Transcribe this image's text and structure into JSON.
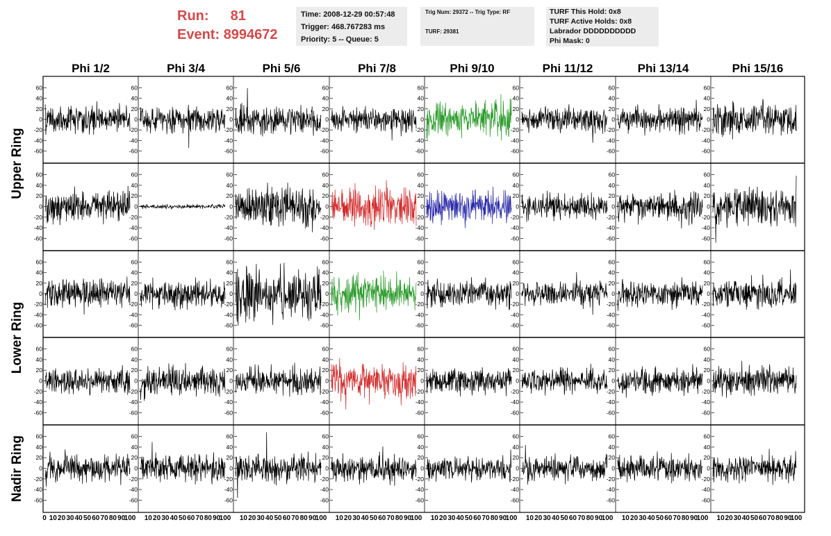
{
  "header": {
    "run_label": "Run:",
    "run_value": "81",
    "event_label": "Event:",
    "event_value": "8994672"
  },
  "info_box_1": {
    "time": "Time: 2008-12-29 00:57:48",
    "trigger": "Trigger: 468.767283 ms",
    "priority": "Priority: 5 -- Queue: 5"
  },
  "info_box_2": {
    "trig": "Trig Num: 29372 -- Trig Type: RF",
    "turf": "TURF: 29381"
  },
  "info_box_3": {
    "hold": "TURF This Hold: 0x8",
    "active": "TURF Active Holds: 0x8",
    "labrador": "Labrador DDDDDDDDDD",
    "phimask": "Phi Mask: 0"
  },
  "chart_data": {
    "type": "line",
    "columns": [
      "Phi 1/2",
      "Phi 3/4",
      "Phi 5/6",
      "Phi 7/8",
      "Phi 9/10",
      "Phi 11/12",
      "Phi 13/14",
      "Phi 15/16"
    ],
    "rings": [
      {
        "label": "Upper Ring",
        "rows": 2
      },
      {
        "label": "Lower Ring",
        "rows": 2
      },
      {
        "label": "Nadir Ring",
        "rows": 1
      }
    ],
    "ylim": [
      -70,
      70
    ],
    "yticks": [
      -60,
      -40,
      -20,
      0,
      20,
      40,
      60
    ],
    "xlim": [
      0,
      100
    ],
    "xtick_labels": [
      "0",
      "10",
      "20",
      "30",
      "40",
      "50",
      "60",
      "70",
      "80",
      "90",
      "100"
    ],
    "grid": false,
    "trace_colors": {
      "default": "#000000",
      "green": "#2a9a2a",
      "red": "#d22a2a",
      "blue": "#2a2aa8"
    },
    "traces": [
      [
        {
          "amp": 13,
          "color": "default"
        },
        {
          "amp": 12,
          "color": "default"
        },
        {
          "amp": 14,
          "color": "default"
        },
        {
          "amp": 11,
          "color": "default"
        },
        {
          "amp": 17,
          "color": "green"
        },
        {
          "amp": 11,
          "color": "default"
        },
        {
          "amp": 12,
          "color": "default"
        },
        {
          "amp": 15,
          "color": "default"
        }
      ],
      [
        {
          "amp": 15,
          "color": "default"
        },
        {
          "amp": 2,
          "color": "default"
        },
        {
          "amp": 18,
          "color": "default"
        },
        {
          "amp": 17,
          "color": "red"
        },
        {
          "amp": 15,
          "color": "blue"
        },
        {
          "amp": 12,
          "color": "default"
        },
        {
          "amp": 13,
          "color": "default"
        },
        {
          "amp": 16,
          "color": "default"
        }
      ],
      [
        {
          "amp": 14,
          "color": "default"
        },
        {
          "amp": 13,
          "color": "default"
        },
        {
          "amp": 24,
          "color": "default"
        },
        {
          "amp": 17,
          "color": "green"
        },
        {
          "amp": 12,
          "color": "default"
        },
        {
          "amp": 11,
          "color": "default"
        },
        {
          "amp": 12,
          "color": "default"
        },
        {
          "amp": 13,
          "color": "default"
        }
      ],
      [
        {
          "amp": 12,
          "color": "default"
        },
        {
          "amp": 14,
          "color": "default"
        },
        {
          "amp": 13,
          "color": "default"
        },
        {
          "amp": 17,
          "color": "red"
        },
        {
          "amp": 12,
          "color": "default"
        },
        {
          "amp": 11,
          "color": "default"
        },
        {
          "amp": 12,
          "color": "default"
        },
        {
          "amp": 14,
          "color": "default"
        }
      ],
      [
        {
          "amp": 13,
          "color": "default"
        },
        {
          "amp": 12,
          "color": "default"
        },
        {
          "amp": 13,
          "color": "default"
        },
        {
          "amp": 12,
          "color": "default"
        },
        {
          "amp": 11,
          "color": "default"
        },
        {
          "amp": 12,
          "color": "default"
        },
        {
          "amp": 12,
          "color": "default"
        },
        {
          "amp": 12,
          "color": "default"
        }
      ]
    ]
  }
}
